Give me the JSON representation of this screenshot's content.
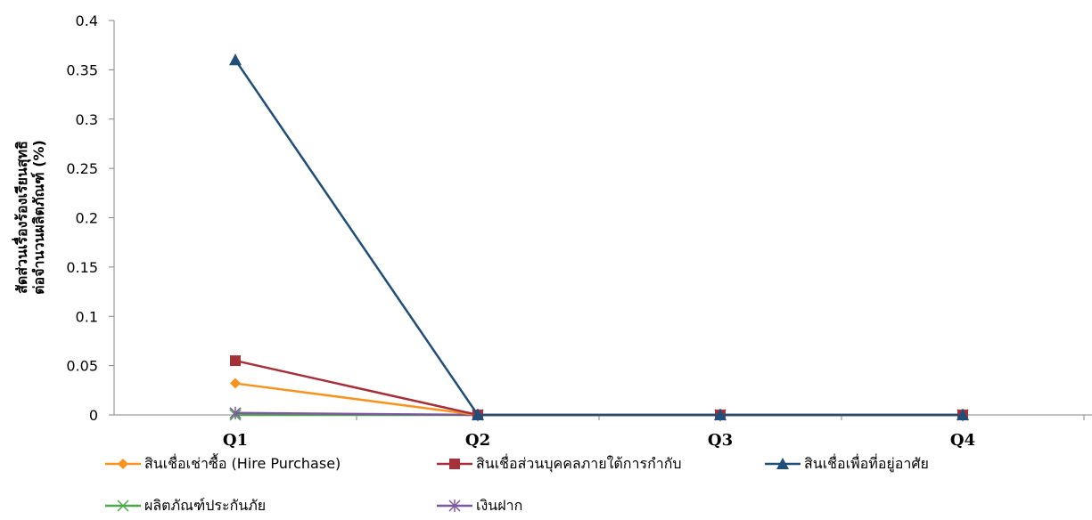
{
  "chart_data": {
    "type": "line",
    "title": "",
    "xlabel": "",
    "ylabel": "สัดส่วนเรื่องร้องเรียนสุทธิ ต่อจำนวนผลิตภัณฑ์ (%)",
    "categories": [
      "Q1",
      "Q2",
      "Q3",
      "Q4"
    ],
    "ylim": [
      0,
      0.4
    ],
    "yticks": [
      "0",
      "0.05",
      "0.1",
      "0.15",
      "0.2",
      "0.25",
      "0.3",
      "0.35",
      "0.4"
    ],
    "grid": false,
    "legend_position": "bottom",
    "series": [
      {
        "name": "สินเชื่อเช่าซื้อ (Hire Purchase)",
        "values": [
          0.032,
          0,
          0,
          0
        ],
        "color": "#F79420",
        "marker": "diamond"
      },
      {
        "name": "สินเชื่อส่วนบุคคลภายใต้การกำกับ",
        "values": [
          0.055,
          0,
          0,
          0
        ],
        "color": "#A5303A",
        "marker": "square"
      },
      {
        "name": "สินเชื่อเพื่อที่อยู่อาศัย",
        "values": [
          0.36,
          0,
          0,
          0
        ],
        "color": "#1F4E79",
        "marker": "triangle"
      },
      {
        "name": "ผลิตภัณฑ์ประกันภัย",
        "values": [
          0,
          0,
          0,
          0
        ],
        "color": "#4CA64C",
        "marker": "x"
      },
      {
        "name": "เงินฝาก",
        "values": [
          0.002,
          0,
          0,
          0
        ],
        "color": "#7B5A9C",
        "marker": "star"
      }
    ]
  }
}
